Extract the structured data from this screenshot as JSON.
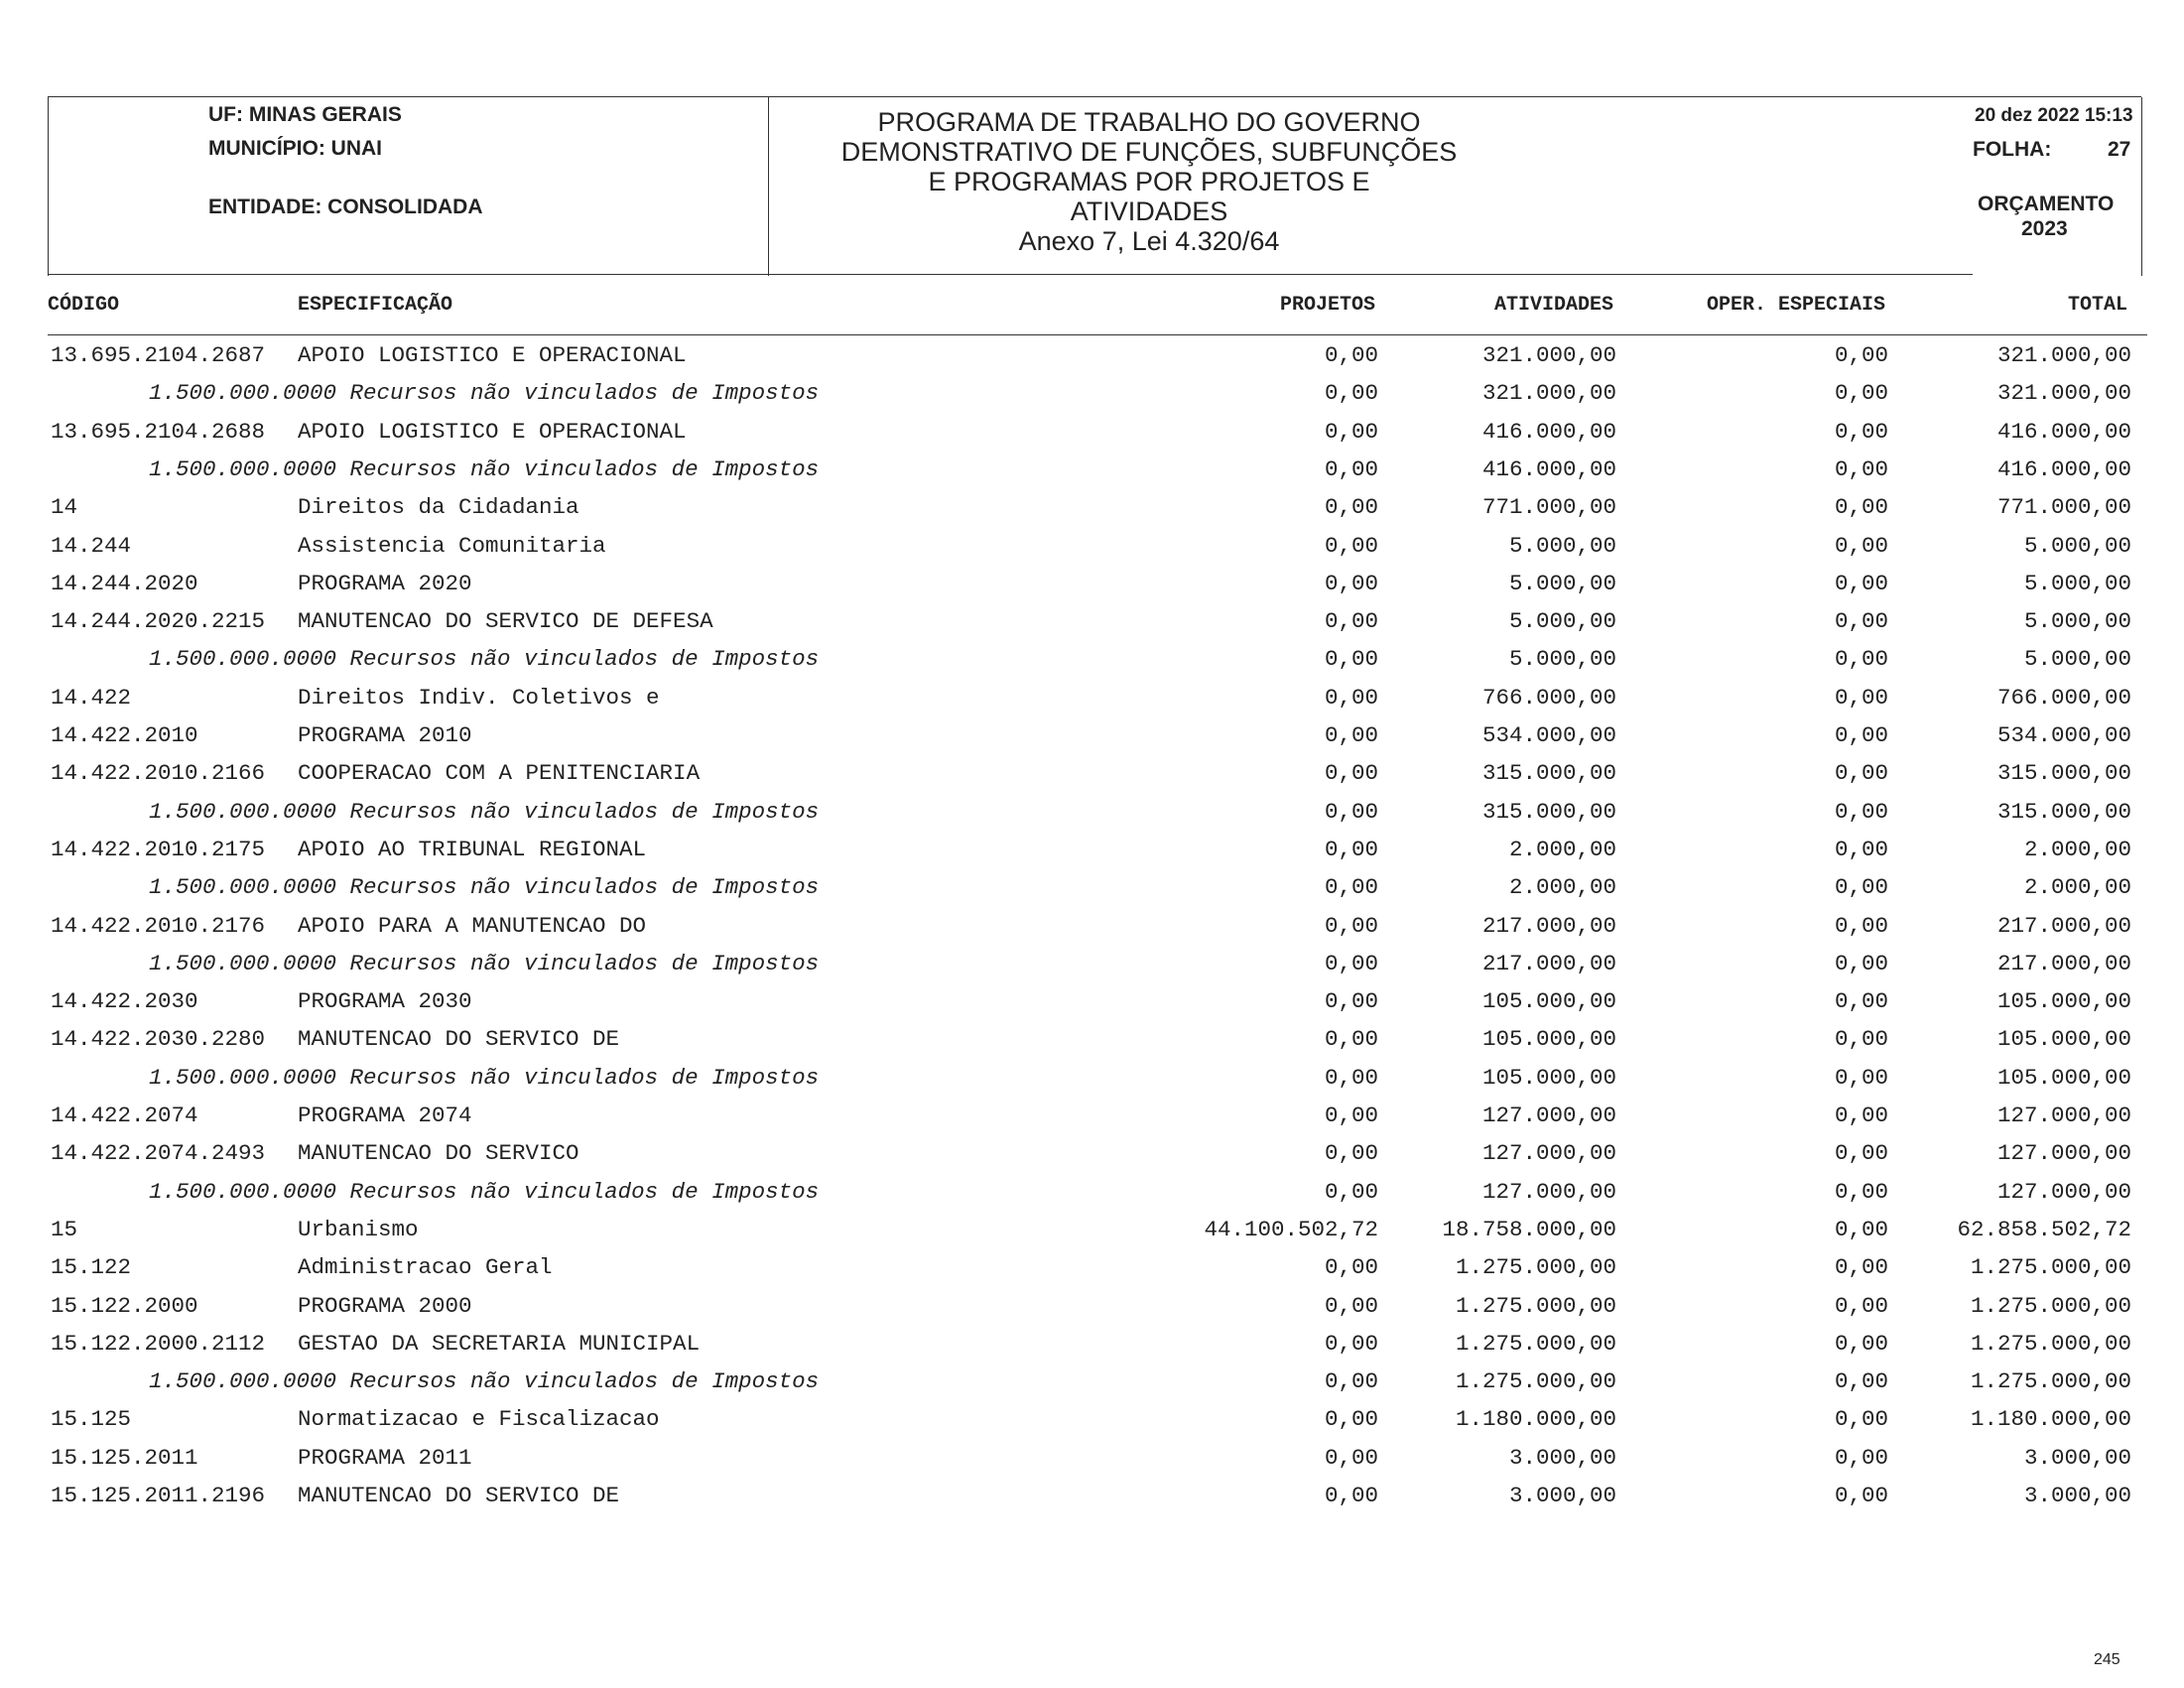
{
  "header": {
    "uf": "UF: MINAS GERAIS",
    "municipio": "MUNICÍPIO: UNAI",
    "entidade": "ENTIDADE: CONSOLIDADA",
    "title_lines": [
      "PROGRAMA DE TRABALHO DO GOVERNO",
      "DEMONSTRATIVO DE FUNÇÕES, SUBFUNÇÕES",
      "E PROGRAMAS POR PROJETOS E",
      "ATIVIDADES",
      "Anexo 7, Lei 4.320/64"
    ],
    "datetime": "20 dez 2022 15:13",
    "folha_label": "FOLHA:",
    "folha_value": "27",
    "orcamento": "ORÇAMENTO",
    "ano": "2023"
  },
  "columns": {
    "codigo": "CÓDIGO",
    "especificacao": "ESPECIFICAÇÃO",
    "projetos": "PROJETOS",
    "atividades": "ATIVIDADES",
    "oper": "OPER. ESPECIAIS",
    "total": "TOTAL"
  },
  "rows": [
    {
      "sub": false,
      "code": "13.695.2104.2687",
      "spec": "APOIO LOGISTICO E OPERACIONAL",
      "proj": "0,00",
      "ativ": "321.000,00",
      "oper": "0,00",
      "total": "321.000,00"
    },
    {
      "sub": true,
      "code": "",
      "spec": "1.500.000.0000 Recursos não vinculados de Impostos",
      "proj": "0,00",
      "ativ": "321.000,00",
      "oper": "0,00",
      "total": "321.000,00"
    },
    {
      "sub": false,
      "code": "13.695.2104.2688",
      "spec": "APOIO LOGISTICO E OPERACIONAL",
      "proj": "0,00",
      "ativ": "416.000,00",
      "oper": "0,00",
      "total": "416.000,00"
    },
    {
      "sub": true,
      "code": "",
      "spec": "1.500.000.0000 Recursos não vinculados de Impostos",
      "proj": "0,00",
      "ativ": "416.000,00",
      "oper": "0,00",
      "total": "416.000,00"
    },
    {
      "sub": false,
      "code": "14",
      "spec": "Direitos da Cidadania",
      "proj": "0,00",
      "ativ": "771.000,00",
      "oper": "0,00",
      "total": "771.000,00"
    },
    {
      "sub": false,
      "code": "14.244",
      "spec": "Assistencia Comunitaria",
      "proj": "0,00",
      "ativ": "5.000,00",
      "oper": "0,00",
      "total": "5.000,00"
    },
    {
      "sub": false,
      "code": "14.244.2020",
      "spec": "PROGRAMA 2020",
      "proj": "0,00",
      "ativ": "5.000,00",
      "oper": "0,00",
      "total": "5.000,00"
    },
    {
      "sub": false,
      "code": "14.244.2020.2215",
      "spec": "MANUTENCAO DO SERVICO DE DEFESA",
      "proj": "0,00",
      "ativ": "5.000,00",
      "oper": "0,00",
      "total": "5.000,00"
    },
    {
      "sub": true,
      "code": "",
      "spec": "1.500.000.0000 Recursos não vinculados de Impostos",
      "proj": "0,00",
      "ativ": "5.000,00",
      "oper": "0,00",
      "total": "5.000,00"
    },
    {
      "sub": false,
      "code": "14.422",
      "spec": "Direitos Indiv. Coletivos e",
      "proj": "0,00",
      "ativ": "766.000,00",
      "oper": "0,00",
      "total": "766.000,00"
    },
    {
      "sub": false,
      "code": "14.422.2010",
      "spec": "PROGRAMA 2010",
      "proj": "0,00",
      "ativ": "534.000,00",
      "oper": "0,00",
      "total": "534.000,00"
    },
    {
      "sub": false,
      "code": "14.422.2010.2166",
      "spec": "COOPERACAO COM A PENITENCIARIA",
      "proj": "0,00",
      "ativ": "315.000,00",
      "oper": "0,00",
      "total": "315.000,00"
    },
    {
      "sub": true,
      "code": "",
      "spec": "1.500.000.0000 Recursos não vinculados de Impostos",
      "proj": "0,00",
      "ativ": "315.000,00",
      "oper": "0,00",
      "total": "315.000,00"
    },
    {
      "sub": false,
      "code": "14.422.2010.2175",
      "spec": "APOIO AO TRIBUNAL REGIONAL",
      "proj": "0,00",
      "ativ": "2.000,00",
      "oper": "0,00",
      "total": "2.000,00"
    },
    {
      "sub": true,
      "code": "",
      "spec": "1.500.000.0000 Recursos não vinculados de Impostos",
      "proj": "0,00",
      "ativ": "2.000,00",
      "oper": "0,00",
      "total": "2.000,00"
    },
    {
      "sub": false,
      "code": "14.422.2010.2176",
      "spec": "APOIO PARA A MANUTENCAO DO",
      "proj": "0,00",
      "ativ": "217.000,00",
      "oper": "0,00",
      "total": "217.000,00"
    },
    {
      "sub": true,
      "code": "",
      "spec": "1.500.000.0000 Recursos não vinculados de Impostos",
      "proj": "0,00",
      "ativ": "217.000,00",
      "oper": "0,00",
      "total": "217.000,00"
    },
    {
      "sub": false,
      "code": "14.422.2030",
      "spec": "PROGRAMA 2030",
      "proj": "0,00",
      "ativ": "105.000,00",
      "oper": "0,00",
      "total": "105.000,00"
    },
    {
      "sub": false,
      "code": "14.422.2030.2280",
      "spec": "MANUTENCAO DO SERVICO DE",
      "proj": "0,00",
      "ativ": "105.000,00",
      "oper": "0,00",
      "total": "105.000,00"
    },
    {
      "sub": true,
      "code": "",
      "spec": "1.500.000.0000 Recursos não vinculados de Impostos",
      "proj": "0,00",
      "ativ": "105.000,00",
      "oper": "0,00",
      "total": "105.000,00"
    },
    {
      "sub": false,
      "code": "14.422.2074",
      "spec": "PROGRAMA 2074",
      "proj": "0,00",
      "ativ": "127.000,00",
      "oper": "0,00",
      "total": "127.000,00"
    },
    {
      "sub": false,
      "code": "14.422.2074.2493",
      "spec": "MANUTENCAO DO SERVICO",
      "proj": "0,00",
      "ativ": "127.000,00",
      "oper": "0,00",
      "total": "127.000,00"
    },
    {
      "sub": true,
      "code": "",
      "spec": "1.500.000.0000 Recursos não vinculados de Impostos",
      "proj": "0,00",
      "ativ": "127.000,00",
      "oper": "0,00",
      "total": "127.000,00"
    },
    {
      "sub": false,
      "code": "15",
      "spec": "Urbanismo",
      "proj": "44.100.502,72",
      "ativ": "18.758.000,00",
      "oper": "0,00",
      "total": "62.858.502,72"
    },
    {
      "sub": false,
      "code": "15.122",
      "spec": "Administracao Geral",
      "proj": "0,00",
      "ativ": "1.275.000,00",
      "oper": "0,00",
      "total": "1.275.000,00"
    },
    {
      "sub": false,
      "code": "15.122.2000",
      "spec": "PROGRAMA 2000",
      "proj": "0,00",
      "ativ": "1.275.000,00",
      "oper": "0,00",
      "total": "1.275.000,00"
    },
    {
      "sub": false,
      "code": "15.122.2000.2112",
      "spec": "GESTAO DA SECRETARIA MUNICIPAL",
      "proj": "0,00",
      "ativ": "1.275.000,00",
      "oper": "0,00",
      "total": "1.275.000,00"
    },
    {
      "sub": true,
      "code": "",
      "spec": "1.500.000.0000 Recursos não vinculados de Impostos",
      "proj": "0,00",
      "ativ": "1.275.000,00",
      "oper": "0,00",
      "total": "1.275.000,00"
    },
    {
      "sub": false,
      "code": "15.125",
      "spec": "Normatizacao e Fiscalizacao",
      "proj": "0,00",
      "ativ": "1.180.000,00",
      "oper": "0,00",
      "total": "1.180.000,00"
    },
    {
      "sub": false,
      "code": "15.125.2011",
      "spec": "PROGRAMA 2011",
      "proj": "0,00",
      "ativ": "3.000,00",
      "oper": "0,00",
      "total": "3.000,00"
    },
    {
      "sub": false,
      "code": "15.125.2011.2196",
      "spec": "MANUTENCAO DO SERVICO DE",
      "proj": "0,00",
      "ativ": "3.000,00",
      "oper": "0,00",
      "total": "3.000,00"
    }
  ],
  "page_number": "245"
}
